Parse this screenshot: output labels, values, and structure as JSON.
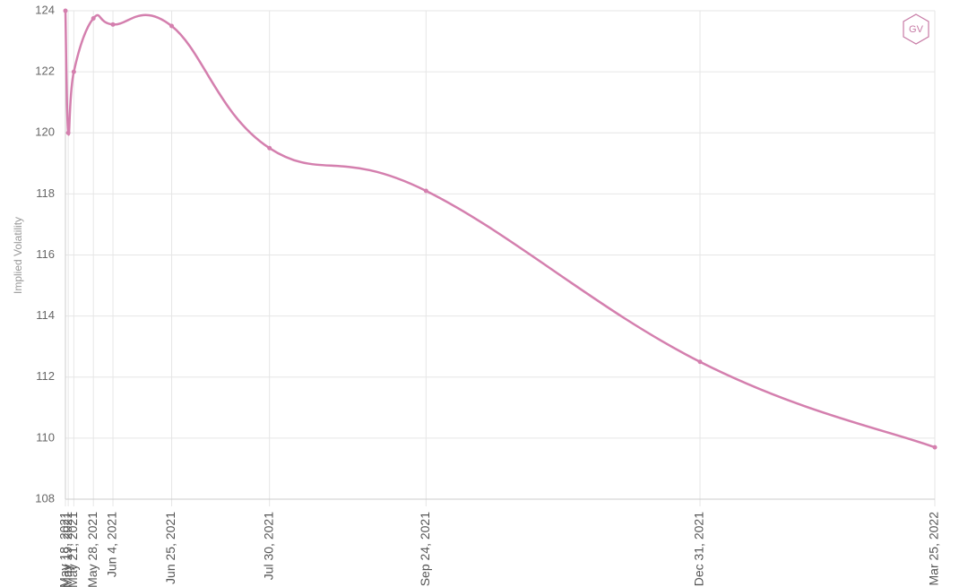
{
  "chart_data": {
    "type": "line",
    "y_label": "Implied Volatility",
    "logo": "GV",
    "x": [
      "May 18, 2021",
      "May 19, 2021",
      "May 21, 2021",
      "May 28, 2021",
      "Jun 4, 2021",
      "Jun 25, 2021",
      "Jul 30, 2021",
      "Sep 24, 2021",
      "Dec 31, 2021",
      "Mar 25, 2022"
    ],
    "series": [
      {
        "color": "#d47fae",
        "values": [
          124,
          120,
          122,
          123.75,
          123.55,
          123.5,
          119.5,
          118.1,
          112.5,
          109.7
        ]
      }
    ],
    "ylim": [
      108,
      124
    ],
    "yticks": [
      108,
      110,
      112,
      114,
      116,
      118,
      120,
      122,
      124
    ],
    "grid": true
  }
}
